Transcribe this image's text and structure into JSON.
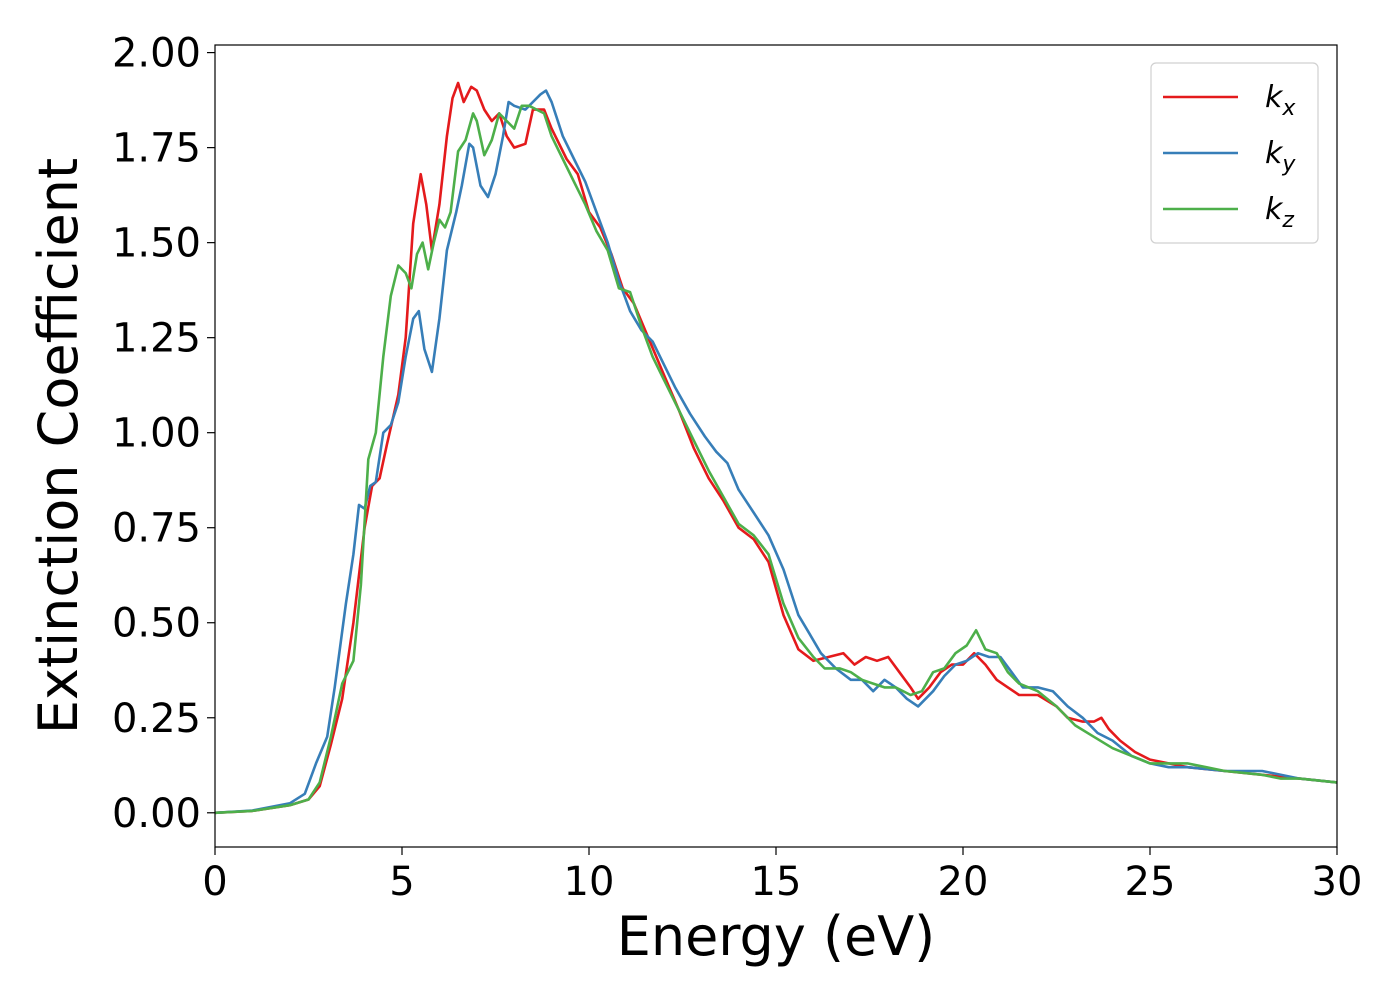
{
  "chart_data": {
    "type": "line",
    "title": "",
    "xlabel": "Energy (eV)",
    "ylabel": "Extinction Coefficient",
    "xlim": [
      0,
      30
    ],
    "ylim": [
      -0.09,
      2.02
    ],
    "xticks": [
      0,
      5,
      10,
      15,
      20,
      25,
      30
    ],
    "xtick_labels": [
      "0",
      "5",
      "10",
      "15",
      "20",
      "25",
      "30"
    ],
    "yticks": [
      0,
      0.25,
      0.5,
      0.75,
      1.0,
      1.25,
      1.5,
      1.75,
      2.0
    ],
    "ytick_labels": [
      "0.00",
      "0.25",
      "0.50",
      "0.75",
      "1.00",
      "1.25",
      "1.50",
      "1.75",
      "2.00"
    ],
    "grid": false,
    "legend_position": "top-right",
    "series": [
      {
        "name": "k",
        "subscript": "x",
        "color": "#e41a1c",
        "points": [
          [
            0,
            0
          ],
          [
            1,
            0.005
          ],
          [
            2,
            0.02
          ],
          [
            2.5,
            0.035
          ],
          [
            2.8,
            0.07
          ],
          [
            3.1,
            0.18
          ],
          [
            3.4,
            0.3
          ],
          [
            3.7,
            0.5
          ],
          [
            4,
            0.75
          ],
          [
            4.2,
            0.86
          ],
          [
            4.4,
            0.88
          ],
          [
            4.6,
            0.97
          ],
          [
            4.9,
            1.1
          ],
          [
            5.1,
            1.25
          ],
          [
            5.3,
            1.55
          ],
          [
            5.5,
            1.68
          ],
          [
            5.65,
            1.6
          ],
          [
            5.8,
            1.48
          ],
          [
            6,
            1.6
          ],
          [
            6.2,
            1.78
          ],
          [
            6.35,
            1.88
          ],
          [
            6.5,
            1.92
          ],
          [
            6.65,
            1.87
          ],
          [
            6.85,
            1.91
          ],
          [
            7,
            1.9
          ],
          [
            7.2,
            1.85
          ],
          [
            7.4,
            1.82
          ],
          [
            7.6,
            1.84
          ],
          [
            7.8,
            1.78
          ],
          [
            8,
            1.75
          ],
          [
            8.3,
            1.76
          ],
          [
            8.5,
            1.85
          ],
          [
            8.8,
            1.85
          ],
          [
            9,
            1.8
          ],
          [
            9.4,
            1.72
          ],
          [
            9.7,
            1.68
          ],
          [
            10,
            1.58
          ],
          [
            10.3,
            1.54
          ],
          [
            10.6,
            1.47
          ],
          [
            10.9,
            1.38
          ],
          [
            11.2,
            1.34
          ],
          [
            11.5,
            1.27
          ],
          [
            11.8,
            1.2
          ],
          [
            12.1,
            1.13
          ],
          [
            12.4,
            1.06
          ],
          [
            12.8,
            0.96
          ],
          [
            13.2,
            0.88
          ],
          [
            13.6,
            0.82
          ],
          [
            14,
            0.75
          ],
          [
            14.4,
            0.72
          ],
          [
            14.8,
            0.66
          ],
          [
            15.2,
            0.52
          ],
          [
            15.6,
            0.43
          ],
          [
            16,
            0.4
          ],
          [
            16.4,
            0.41
          ],
          [
            16.8,
            0.42
          ],
          [
            17.1,
            0.39
          ],
          [
            17.4,
            0.41
          ],
          [
            17.7,
            0.4
          ],
          [
            18,
            0.41
          ],
          [
            18.3,
            0.37
          ],
          [
            18.6,
            0.33
          ],
          [
            18.8,
            0.3
          ],
          [
            19.1,
            0.33
          ],
          [
            19.4,
            0.37
          ],
          [
            19.7,
            0.39
          ],
          [
            20,
            0.39
          ],
          [
            20.3,
            0.42
          ],
          [
            20.6,
            0.39
          ],
          [
            20.9,
            0.35
          ],
          [
            21.2,
            0.33
          ],
          [
            21.5,
            0.31
          ],
          [
            22,
            0.31
          ],
          [
            22.5,
            0.28
          ],
          [
            22.8,
            0.25
          ],
          [
            23.2,
            0.24
          ],
          [
            23.5,
            0.24
          ],
          [
            23.7,
            0.25
          ],
          [
            23.9,
            0.22
          ],
          [
            24.2,
            0.19
          ],
          [
            24.6,
            0.16
          ],
          [
            25,
            0.14
          ],
          [
            25.5,
            0.13
          ],
          [
            26,
            0.12
          ],
          [
            27,
            0.11
          ],
          [
            28,
            0.1
          ],
          [
            29,
            0.09
          ],
          [
            30,
            0.08
          ]
        ]
      },
      {
        "name": "k",
        "subscript": "y",
        "color": "#377eb8",
        "points": [
          [
            0,
            0
          ],
          [
            1,
            0.006
          ],
          [
            2,
            0.025
          ],
          [
            2.4,
            0.05
          ],
          [
            2.7,
            0.13
          ],
          [
            3,
            0.2
          ],
          [
            3.2,
            0.33
          ],
          [
            3.5,
            0.55
          ],
          [
            3.7,
            0.68
          ],
          [
            3.85,
            0.81
          ],
          [
            4,
            0.8
          ],
          [
            4.15,
            0.86
          ],
          [
            4.3,
            0.87
          ],
          [
            4.5,
            1.0
          ],
          [
            4.7,
            1.02
          ],
          [
            4.9,
            1.08
          ],
          [
            5.1,
            1.2
          ],
          [
            5.3,
            1.3
          ],
          [
            5.45,
            1.32
          ],
          [
            5.6,
            1.22
          ],
          [
            5.8,
            1.16
          ],
          [
            6,
            1.3
          ],
          [
            6.2,
            1.48
          ],
          [
            6.45,
            1.58
          ],
          [
            6.6,
            1.65
          ],
          [
            6.8,
            1.76
          ],
          [
            6.9,
            1.75
          ],
          [
            7.1,
            1.65
          ],
          [
            7.3,
            1.62
          ],
          [
            7.5,
            1.68
          ],
          [
            7.7,
            1.78
          ],
          [
            7.85,
            1.87
          ],
          [
            8,
            1.86
          ],
          [
            8.3,
            1.85
          ],
          [
            8.5,
            1.87
          ],
          [
            8.7,
            1.89
          ],
          [
            8.85,
            1.9
          ],
          [
            9,
            1.87
          ],
          [
            9.3,
            1.78
          ],
          [
            9.6,
            1.72
          ],
          [
            9.9,
            1.66
          ],
          [
            10.2,
            1.58
          ],
          [
            10.5,
            1.5
          ],
          [
            10.8,
            1.4
          ],
          [
            11.1,
            1.32
          ],
          [
            11.4,
            1.27
          ],
          [
            11.7,
            1.24
          ],
          [
            12,
            1.18
          ],
          [
            12.3,
            1.12
          ],
          [
            12.7,
            1.05
          ],
          [
            13.1,
            0.99
          ],
          [
            13.4,
            0.95
          ],
          [
            13.7,
            0.92
          ],
          [
            14,
            0.85
          ],
          [
            14.4,
            0.79
          ],
          [
            14.8,
            0.73
          ],
          [
            15.2,
            0.64
          ],
          [
            15.6,
            0.52
          ],
          [
            15.9,
            0.47
          ],
          [
            16.2,
            0.42
          ],
          [
            16.6,
            0.38
          ],
          [
            17,
            0.35
          ],
          [
            17.3,
            0.35
          ],
          [
            17.6,
            0.32
          ],
          [
            17.9,
            0.35
          ],
          [
            18.2,
            0.33
          ],
          [
            18.5,
            0.3
          ],
          [
            18.8,
            0.28
          ],
          [
            19.2,
            0.32
          ],
          [
            19.5,
            0.36
          ],
          [
            19.8,
            0.39
          ],
          [
            20.1,
            0.4
          ],
          [
            20.4,
            0.42
          ],
          [
            20.7,
            0.41
          ],
          [
            21,
            0.41
          ],
          [
            21.3,
            0.37
          ],
          [
            21.6,
            0.33
          ],
          [
            22,
            0.33
          ],
          [
            22.4,
            0.32
          ],
          [
            22.8,
            0.28
          ],
          [
            23.2,
            0.25
          ],
          [
            23.6,
            0.21
          ],
          [
            24,
            0.19
          ],
          [
            24.5,
            0.15
          ],
          [
            25,
            0.13
          ],
          [
            25.5,
            0.12
          ],
          [
            26,
            0.12
          ],
          [
            27,
            0.11
          ],
          [
            28,
            0.11
          ],
          [
            29,
            0.09
          ],
          [
            30,
            0.08
          ]
        ]
      },
      {
        "name": "k",
        "subscript": "z",
        "color": "#4daf4a",
        "points": [
          [
            0,
            0
          ],
          [
            1,
            0.005
          ],
          [
            2,
            0.02
          ],
          [
            2.5,
            0.035
          ],
          [
            2.8,
            0.08
          ],
          [
            3.1,
            0.2
          ],
          [
            3.4,
            0.34
          ],
          [
            3.7,
            0.4
          ],
          [
            3.9,
            0.6
          ],
          [
            4.1,
            0.93
          ],
          [
            4.3,
            1.0
          ],
          [
            4.5,
            1.2
          ],
          [
            4.7,
            1.36
          ],
          [
            4.9,
            1.44
          ],
          [
            5.1,
            1.42
          ],
          [
            5.25,
            1.38
          ],
          [
            5.4,
            1.47
          ],
          [
            5.55,
            1.5
          ],
          [
            5.7,
            1.43
          ],
          [
            5.85,
            1.5
          ],
          [
            6,
            1.56
          ],
          [
            6.15,
            1.54
          ],
          [
            6.3,
            1.58
          ],
          [
            6.5,
            1.74
          ],
          [
            6.7,
            1.77
          ],
          [
            6.9,
            1.84
          ],
          [
            7,
            1.82
          ],
          [
            7.2,
            1.73
          ],
          [
            7.4,
            1.77
          ],
          [
            7.6,
            1.84
          ],
          [
            7.8,
            1.82
          ],
          [
            8,
            1.8
          ],
          [
            8.2,
            1.86
          ],
          [
            8.4,
            1.86
          ],
          [
            8.6,
            1.85
          ],
          [
            8.8,
            1.84
          ],
          [
            9,
            1.78
          ],
          [
            9.3,
            1.72
          ],
          [
            9.6,
            1.66
          ],
          [
            9.9,
            1.6
          ],
          [
            10.2,
            1.53
          ],
          [
            10.5,
            1.48
          ],
          [
            10.8,
            1.38
          ],
          [
            11.1,
            1.37
          ],
          [
            11.4,
            1.28
          ],
          [
            11.7,
            1.2
          ],
          [
            12,
            1.14
          ],
          [
            12.4,
            1.06
          ],
          [
            12.8,
            0.98
          ],
          [
            13.2,
            0.9
          ],
          [
            13.6,
            0.83
          ],
          [
            14,
            0.76
          ],
          [
            14.4,
            0.73
          ],
          [
            14.8,
            0.68
          ],
          [
            15.2,
            0.55
          ],
          [
            15.6,
            0.46
          ],
          [
            16,
            0.41
          ],
          [
            16.3,
            0.38
          ],
          [
            16.7,
            0.38
          ],
          [
            17,
            0.37
          ],
          [
            17.3,
            0.35
          ],
          [
            17.6,
            0.34
          ],
          [
            17.9,
            0.33
          ],
          [
            18.2,
            0.33
          ],
          [
            18.6,
            0.31
          ],
          [
            18.9,
            0.32
          ],
          [
            19.2,
            0.37
          ],
          [
            19.5,
            0.38
          ],
          [
            19.8,
            0.42
          ],
          [
            20.1,
            0.44
          ],
          [
            20.35,
            0.48
          ],
          [
            20.6,
            0.43
          ],
          [
            20.9,
            0.42
          ],
          [
            21.2,
            0.37
          ],
          [
            21.5,
            0.34
          ],
          [
            22,
            0.32
          ],
          [
            22.5,
            0.28
          ],
          [
            23,
            0.23
          ],
          [
            23.5,
            0.2
          ],
          [
            24,
            0.17
          ],
          [
            24.5,
            0.15
          ],
          [
            25,
            0.13
          ],
          [
            25.5,
            0.13
          ],
          [
            26,
            0.13
          ],
          [
            26.5,
            0.12
          ],
          [
            27,
            0.11
          ],
          [
            28,
            0.1
          ],
          [
            28.5,
            0.09
          ],
          [
            29,
            0.09
          ],
          [
            30,
            0.08
          ]
        ]
      }
    ]
  }
}
